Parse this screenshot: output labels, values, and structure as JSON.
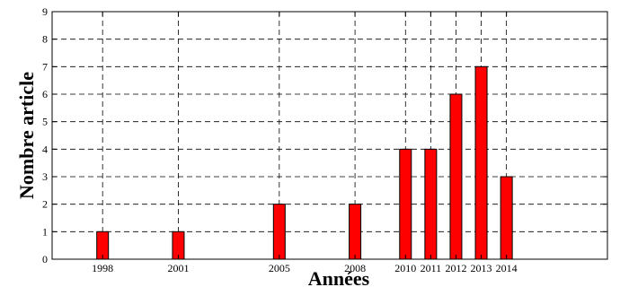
{
  "chart_data": {
    "type": "bar",
    "title": "",
    "xlabel": "Années",
    "ylabel": "Nombre article",
    "x": [
      1998,
      2001,
      2005,
      2008,
      2010,
      2011,
      2012,
      2013,
      2014
    ],
    "values": [
      1,
      1,
      2,
      2,
      4,
      4,
      6,
      7,
      3
    ],
    "xlim": [
      1996,
      2018
    ],
    "ylim": [
      0,
      9
    ],
    "yticks": [
      0,
      1,
      2,
      3,
      4,
      5,
      6,
      7,
      8,
      9
    ],
    "grid": true,
    "bar_color": "#ff0000",
    "bar_edge_color": "#000000"
  }
}
